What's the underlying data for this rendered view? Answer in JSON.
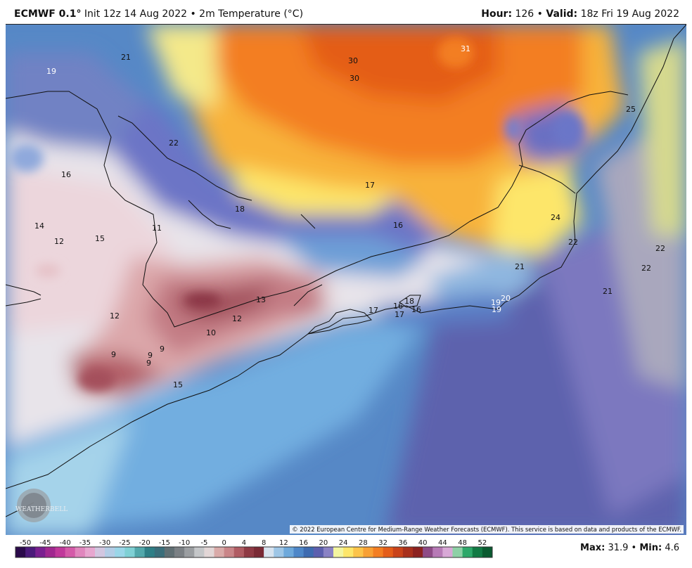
{
  "header": {
    "model": "ECMWF 0.1",
    "deg": "°",
    "init_text": " Init 12z 14 Aug 2022 • 2m Temperature (",
    "unit": "°C",
    "close_paren": ")",
    "hour_label": "Hour:",
    "hour_value": " 126 • ",
    "valid_label": "Valid:",
    "valid_value": " 18z Fri 19 Aug 2022"
  },
  "map": {
    "copyright": "© 2022 European Centre for Medium-Range Weather Forecasts (ECMWF). This service is based on data and products of the ECMWF.",
    "logo_text": "WEATHERBELL",
    "labels": [
      {
        "text": "21",
        "color": "#111111"
      },
      {
        "text": "19",
        "color": "#ffffff"
      },
      {
        "text": "30",
        "color": "#111111"
      },
      {
        "text": "30",
        "color": "#111111"
      },
      {
        "text": "31",
        "color": "#ffffff"
      },
      {
        "text": "25",
        "color": "#111111"
      },
      {
        "text": "22",
        "color": "#111111"
      },
      {
        "text": "16",
        "color": "#111111"
      },
      {
        "text": "17",
        "color": "#111111"
      },
      {
        "text": "18",
        "color": "#111111"
      },
      {
        "text": "14",
        "color": "#111111"
      },
      {
        "text": "12",
        "color": "#111111"
      },
      {
        "text": "15",
        "color": "#111111"
      },
      {
        "text": "11",
        "color": "#111111"
      },
      {
        "text": "16",
        "color": "#111111"
      },
      {
        "text": "24",
        "color": "#111111"
      },
      {
        "text": "22",
        "color": "#111111"
      },
      {
        "text": "22",
        "color": "#111111"
      },
      {
        "text": "22",
        "color": "#111111"
      },
      {
        "text": "21",
        "color": "#111111"
      },
      {
        "text": "21",
        "color": "#111111"
      },
      {
        "text": "13",
        "color": "#111111"
      },
      {
        "text": "12",
        "color": "#111111"
      },
      {
        "text": "12",
        "color": "#111111"
      },
      {
        "text": "10",
        "color": "#111111"
      },
      {
        "text": "9",
        "color": "#111111"
      },
      {
        "text": "9",
        "color": "#111111"
      },
      {
        "text": "9",
        "color": "#111111"
      },
      {
        "text": "9",
        "color": "#111111"
      },
      {
        "text": "17",
        "color": "#111111"
      },
      {
        "text": "16",
        "color": "#111111"
      },
      {
        "text": "17",
        "color": "#111111"
      },
      {
        "text": "18",
        "color": "#111111"
      },
      {
        "text": "16",
        "color": "#111111"
      },
      {
        "text": "19",
        "color": "#ffffff"
      },
      {
        "text": "20",
        "color": "#ffffff"
      },
      {
        "text": "19",
        "color": "#ffffff"
      },
      {
        "text": "15",
        "color": "#111111"
      }
    ]
  },
  "colorbar": {
    "ticks": [
      "-50",
      "-45",
      "-40",
      "-35",
      "-30",
      "-25",
      "-20",
      "-15",
      "-10",
      "-5",
      "0",
      "4",
      "8",
      "12",
      "16",
      "20",
      "24",
      "28",
      "32",
      "36",
      "40",
      "44",
      "48",
      "52"
    ],
    "colors": [
      "#2a0a4a",
      "#4b1a7a",
      "#7a1f8f",
      "#a0278f",
      "#c0389a",
      "#d45aa8",
      "#e086bd",
      "#e7a6cf",
      "#d2c6e0",
      "#b3cde6",
      "#9ad6e8",
      "#7fd0d4",
      "#52a8ab",
      "#2e7f86",
      "#3a6e7a",
      "#606f73",
      "#7b8084",
      "#9b9ea1",
      "#c4c6c8",
      "#e2d6d6",
      "#d9aaa8",
      "#c98588",
      "#b05c63",
      "#8f3a44",
      "#7a2a35",
      "#d7e3ef",
      "#9ec6e6",
      "#6ea9db",
      "#4e87c8",
      "#3e6bb0",
      "#5c5fae",
      "#8a82c4",
      "#f3f5a0",
      "#fde66a",
      "#fcc44a",
      "#f8a034",
      "#f37e22",
      "#e45d19",
      "#c9431a",
      "#a8301c",
      "#8c2220",
      "#8e4b86",
      "#b77ab6",
      "#d8a8d6",
      "#8ed0a6",
      "#2ea86a",
      "#127a44",
      "#0a5a30"
    ]
  },
  "minmax": {
    "max_label": "Max:",
    "max_value": " 31.9 • ",
    "min_label": "Min:",
    "min_value": " 4.6"
  }
}
